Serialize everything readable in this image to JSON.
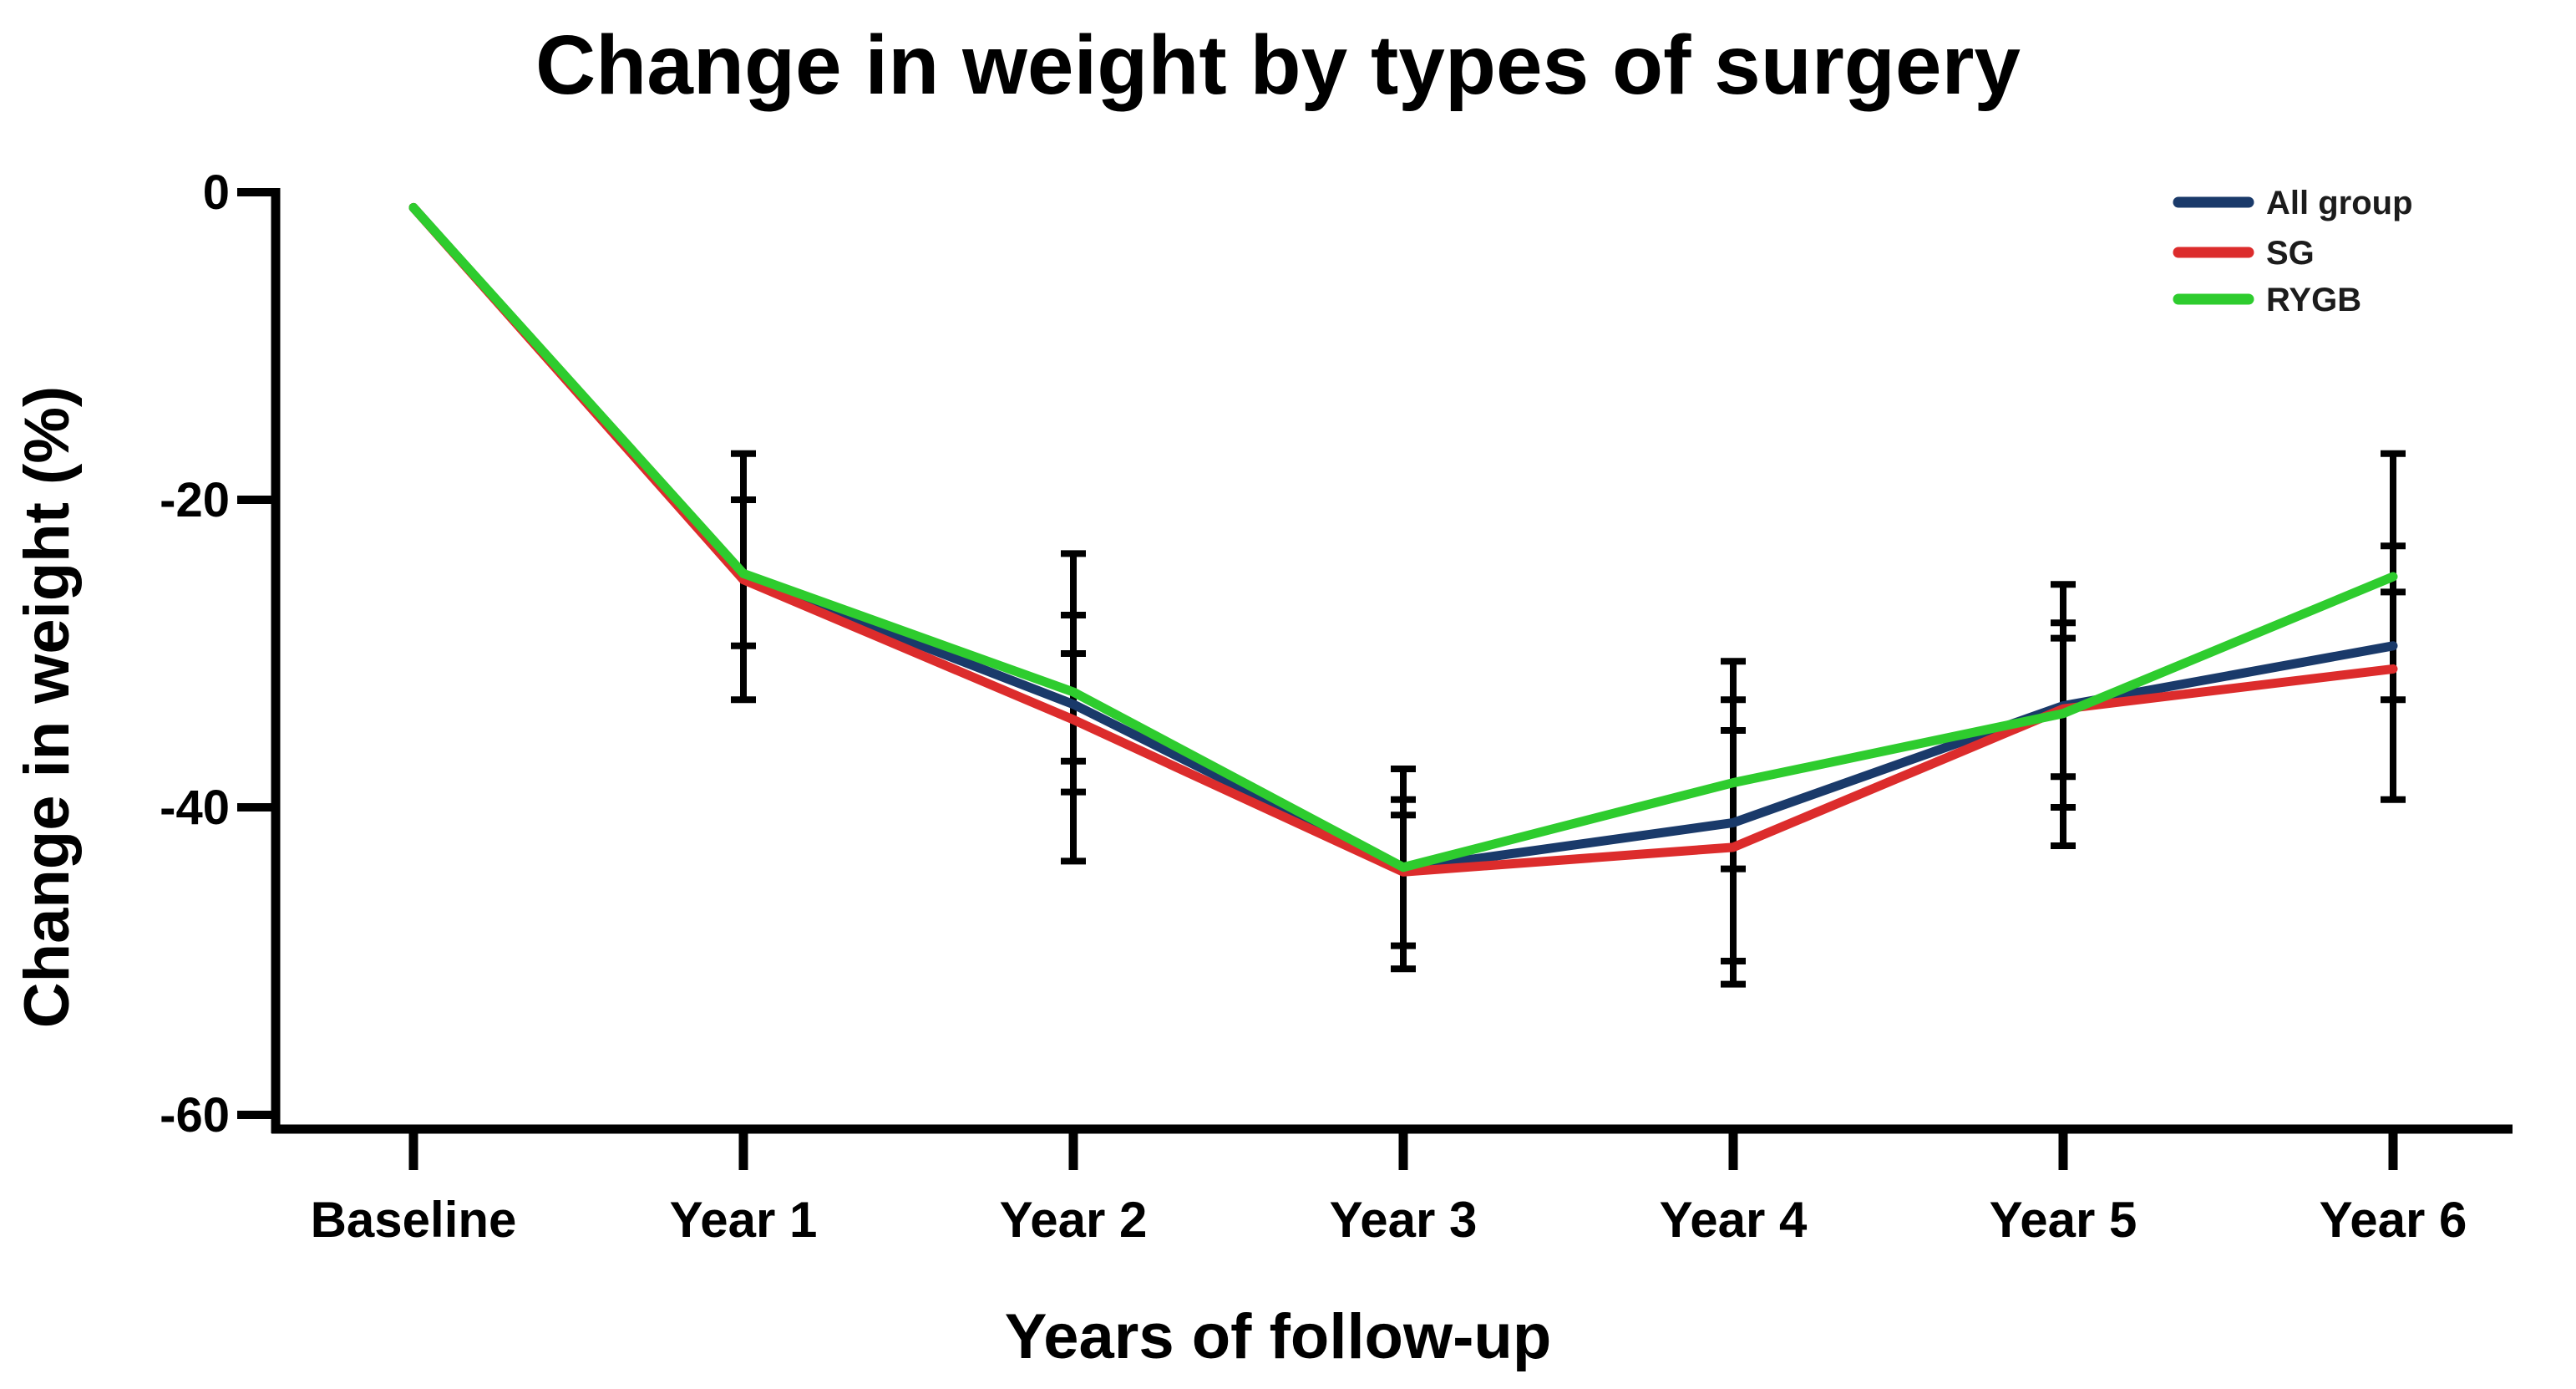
{
  "title": "Change in weight by types of surgery",
  "chart_data": {
    "type": "line",
    "title": "Change in weight by types of surgery",
    "xlabel": "Years of follow-up",
    "ylabel": "Change in weight (%)",
    "ylim": [
      -60,
      0
    ],
    "grid": false,
    "legend_position": "top-right",
    "y_tick_values": [
      0,
      -20,
      -40,
      -60
    ],
    "y_tick_labels": [
      "0",
      "-20",
      "-40",
      "-60"
    ],
    "categories": [
      "Baseline",
      "Year 1",
      "Year 2",
      "Year 3",
      "Year 4",
      "Year 5",
      "Year 6"
    ],
    "series": [
      {
        "name": "All group",
        "color": "#1a3a6a",
        "values": [
          -1,
          -25,
          -33.3,
          -44,
          -41,
          -33.4,
          -29.5
        ]
      },
      {
        "name": "SG",
        "color": "#dc2c2c",
        "values": [
          -1,
          -25.2,
          -34.3,
          -44.2,
          -42.6,
          -33.6,
          -31
        ]
      },
      {
        "name": "RYGB",
        "color": "#2ecc2e",
        "values": [
          -1,
          -24.8,
          -32.5,
          -43.9,
          -38.4,
          -33.9,
          -25
        ]
      }
    ],
    "error_bars": [
      {
        "category": "Year 1",
        "caps": [
          -17,
          -20,
          -29.5,
          -33
        ]
      },
      {
        "category": "Year 2",
        "caps": [
          -23.5,
          -27.5,
          -30,
          -37,
          -39,
          -43.5
        ]
      },
      {
        "category": "Year 3",
        "caps": [
          -37.5,
          -39.5,
          -40.5,
          -49,
          -50.5
        ]
      },
      {
        "category": "Year 4",
        "caps": [
          -30.5,
          -33,
          -35,
          -44,
          -50,
          -51.5
        ]
      },
      {
        "category": "Year 5",
        "caps": [
          -25.5,
          -28,
          -29,
          -38,
          -40,
          -42.5
        ]
      },
      {
        "category": "Year 6",
        "caps": [
          -17,
          -23,
          -26,
          -33,
          -39.5
        ]
      }
    ],
    "error_bar_color": "#000000"
  }
}
